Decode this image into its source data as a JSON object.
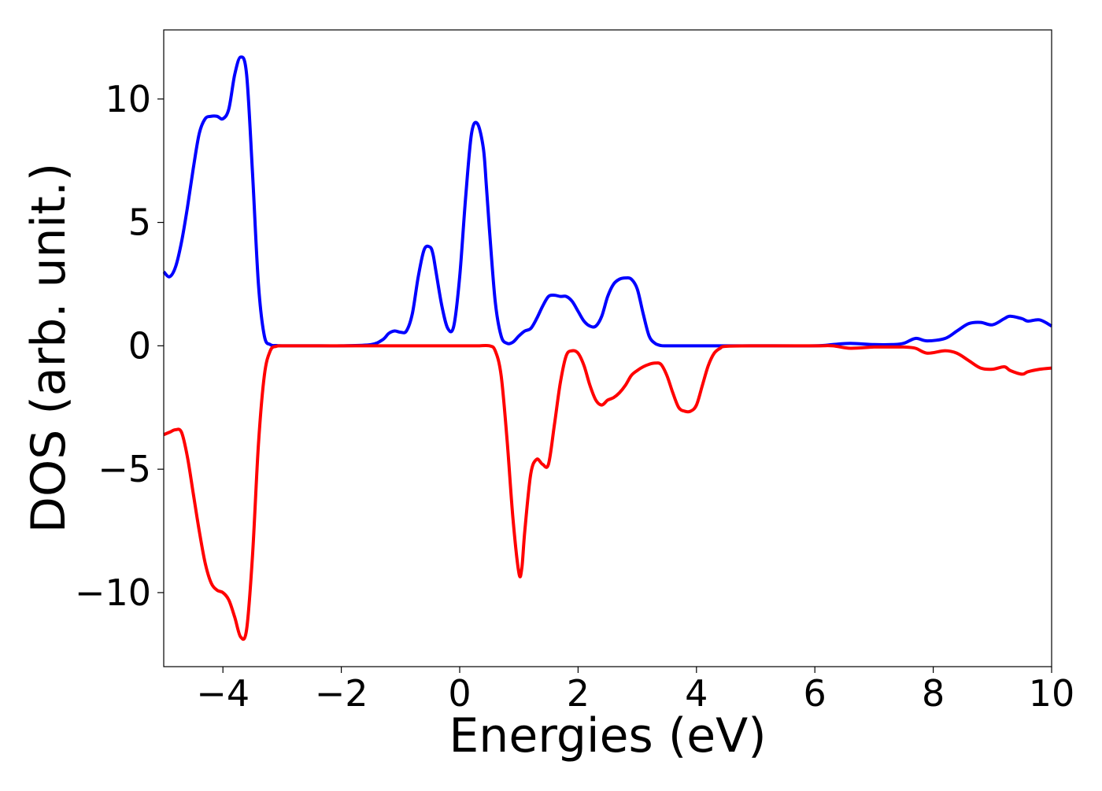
{
  "chart_data": {
    "type": "line",
    "title": "",
    "xlabel": "Energies (eV)",
    "ylabel": "DOS (arb. unit.)",
    "xlim": [
      -5,
      10
    ],
    "ylim": [
      -13,
      12.8
    ],
    "grid": false,
    "legend": "none",
    "xticks": [
      -4,
      -2,
      0,
      2,
      4,
      6,
      8,
      10
    ],
    "xtick_labels": [
      "−4",
      "−2",
      "0",
      "2",
      "4",
      "6",
      "8",
      "10"
    ],
    "yticks": [
      10,
      5,
      0,
      -5,
      -10
    ],
    "ytick_labels": [
      "10",
      "5",
      "0",
      "−5",
      "−10"
    ],
    "series": [
      {
        "color": "#0000ff",
        "x": [
          -5.0,
          -4.9,
          -4.8,
          -4.7,
          -4.6,
          -4.5,
          -4.4,
          -4.3,
          -4.2,
          -4.1,
          -4.0,
          -3.9,
          -3.8,
          -3.7,
          -3.6,
          -3.5,
          -3.4,
          -3.3,
          -3.2,
          -3.1,
          -3.0,
          -2.8,
          -2.5,
          -2.0,
          -1.5,
          -1.3,
          -1.2,
          -1.1,
          -1.0,
          -0.9,
          -0.8,
          -0.7,
          -0.6,
          -0.5,
          -0.45,
          -0.4,
          -0.3,
          -0.2,
          -0.1,
          0.0,
          0.1,
          0.2,
          0.3,
          0.4,
          0.45,
          0.5,
          0.6,
          0.7,
          0.8,
          0.9,
          1.0,
          1.1,
          1.2,
          1.3,
          1.4,
          1.5,
          1.6,
          1.7,
          1.8,
          1.9,
          2.0,
          2.1,
          2.2,
          2.3,
          2.4,
          2.5,
          2.6,
          2.7,
          2.8,
          2.9,
          3.0,
          3.1,
          3.2,
          3.3,
          3.4,
          3.5,
          3.6,
          3.7,
          3.8,
          3.9,
          4.0,
          4.2,
          4.5,
          5.0,
          6.0,
          6.3,
          6.6,
          7.0,
          7.3,
          7.5,
          7.7,
          7.9,
          8.2,
          8.4,
          8.6,
          8.8,
          9.0,
          9.2,
          9.3,
          9.5,
          9.6,
          9.8,
          10.0
        ],
        "values": [
          3.0,
          2.8,
          3.2,
          4.2,
          5.6,
          7.2,
          8.6,
          9.2,
          9.3,
          9.3,
          9.2,
          9.6,
          11.0,
          11.7,
          11.0,
          7.0,
          2.5,
          0.4,
          0.05,
          0.01,
          0.0,
          0.0,
          0.0,
          0.0,
          0.05,
          0.25,
          0.5,
          0.6,
          0.55,
          0.6,
          1.3,
          2.8,
          3.9,
          4.0,
          3.7,
          3.0,
          1.6,
          0.7,
          0.8,
          2.8,
          6.0,
          8.6,
          9.0,
          8.0,
          6.5,
          4.8,
          1.8,
          0.4,
          0.1,
          0.15,
          0.4,
          0.6,
          0.7,
          1.1,
          1.6,
          2.0,
          2.05,
          2.0,
          2.0,
          1.8,
          1.4,
          1.0,
          0.8,
          0.8,
          1.2,
          2.0,
          2.5,
          2.7,
          2.75,
          2.7,
          2.3,
          1.3,
          0.4,
          0.1,
          0.01,
          0.0,
          0.0,
          0.0,
          0.0,
          0.0,
          0.0,
          0.0,
          0.0,
          0.0,
          0.0,
          0.05,
          0.1,
          0.05,
          0.05,
          0.1,
          0.3,
          0.2,
          0.3,
          0.6,
          0.9,
          0.95,
          0.85,
          1.1,
          1.2,
          1.1,
          1.0,
          1.05,
          0.8
        ]
      },
      {
        "color": "#ff0000",
        "x": [
          -5.0,
          -4.9,
          -4.8,
          -4.7,
          -4.6,
          -4.5,
          -4.4,
          -4.3,
          -4.2,
          -4.1,
          -4.0,
          -3.9,
          -3.8,
          -3.7,
          -3.6,
          -3.5,
          -3.4,
          -3.3,
          -3.2,
          -3.1,
          -3.0,
          -2.8,
          -2.5,
          -2.0,
          -1.0,
          0.0,
          0.3,
          0.5,
          0.6,
          0.7,
          0.8,
          0.9,
          1.0,
          1.05,
          1.1,
          1.2,
          1.3,
          1.4,
          1.5,
          1.6,
          1.7,
          1.8,
          1.9,
          2.0,
          2.1,
          2.2,
          2.3,
          2.4,
          2.5,
          2.6,
          2.7,
          2.8,
          2.9,
          3.0,
          3.1,
          3.2,
          3.3,
          3.4,
          3.5,
          3.6,
          3.7,
          3.8,
          3.9,
          4.0,
          4.1,
          4.2,
          4.3,
          4.4,
          4.5,
          5.0,
          6.0,
          6.3,
          6.6,
          7.0,
          7.3,
          7.5,
          7.7,
          7.9,
          8.2,
          8.4,
          8.6,
          8.8,
          9.0,
          9.2,
          9.3,
          9.5,
          9.6,
          9.8,
          10.0
        ],
        "values": [
          -3.6,
          -3.5,
          -3.4,
          -3.5,
          -4.5,
          -6.0,
          -7.5,
          -8.8,
          -9.6,
          -9.9,
          -10.0,
          -10.3,
          -11.0,
          -11.8,
          -11.5,
          -8.5,
          -4.0,
          -1.2,
          -0.2,
          -0.02,
          0.0,
          0.0,
          0.0,
          0.0,
          0.0,
          0.0,
          0.0,
          0.0,
          -0.2,
          -1.2,
          -3.8,
          -7.0,
          -9.2,
          -9.0,
          -7.5,
          -5.2,
          -4.6,
          -4.8,
          -4.8,
          -3.2,
          -1.5,
          -0.4,
          -0.2,
          -0.3,
          -0.8,
          -1.6,
          -2.2,
          -2.4,
          -2.2,
          -2.1,
          -1.9,
          -1.6,
          -1.2,
          -1.0,
          -0.85,
          -0.75,
          -0.7,
          -0.75,
          -1.2,
          -1.9,
          -2.5,
          -2.65,
          -2.65,
          -2.4,
          -1.6,
          -0.8,
          -0.3,
          -0.1,
          -0.02,
          0.0,
          0.0,
          0.0,
          -0.1,
          -0.05,
          -0.05,
          -0.05,
          -0.1,
          -0.3,
          -0.2,
          -0.3,
          -0.6,
          -0.9,
          -0.95,
          -0.85,
          -1.0,
          -1.15,
          -1.05,
          -0.95,
          -0.9
        ]
      }
    ]
  }
}
